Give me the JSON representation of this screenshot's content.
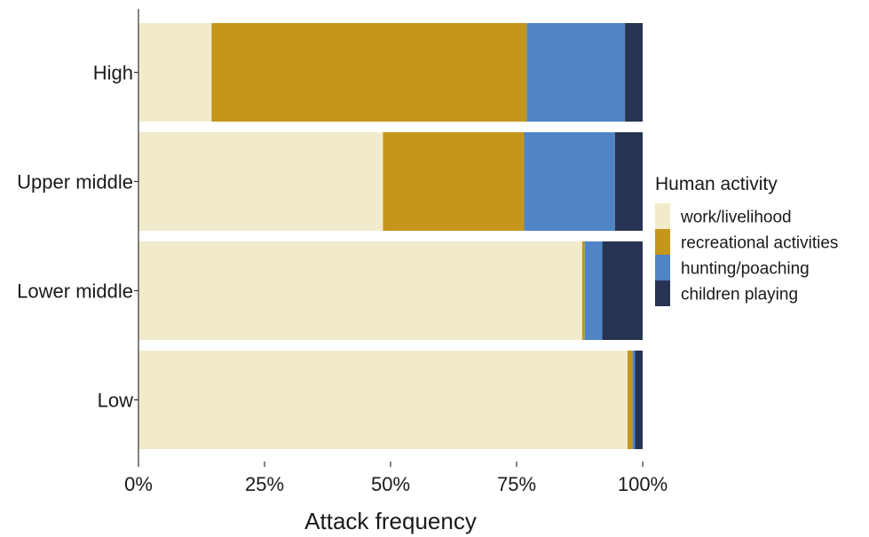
{
  "chart_data": {
    "type": "bar",
    "orientation": "horizontal",
    "stacked": true,
    "normalized": true,
    "categories": [
      "High",
      "Upper middle",
      "Lower middle",
      "Low"
    ],
    "series": [
      {
        "name": "work/livelihood",
        "color": "#F2EBCB",
        "values": [
          14.5,
          48.5,
          88.0,
          97.0
        ]
      },
      {
        "name": "recreational activities",
        "color": "#C4961C",
        "values": [
          62.5,
          28.0,
          0.5,
          1.0
        ]
      },
      {
        "name": "hunting/poaching",
        "color": "#5084C4",
        "values": [
          19.5,
          18.0,
          3.5,
          0.5
        ]
      },
      {
        "name": "children playing",
        "color": "#273352",
        "values": [
          3.5,
          5.5,
          8.0,
          1.5
        ]
      }
    ],
    "xlabel": "Attack frequency",
    "ylabel": "",
    "xlim": [
      0,
      100
    ],
    "x_ticks": [
      "0%",
      "25%",
      "50%",
      "75%",
      "100%"
    ],
    "x_tick_values": [
      0,
      25,
      50,
      75,
      100
    ],
    "grid": false,
    "legend": {
      "title": "Human activity",
      "placement": "right"
    }
  }
}
